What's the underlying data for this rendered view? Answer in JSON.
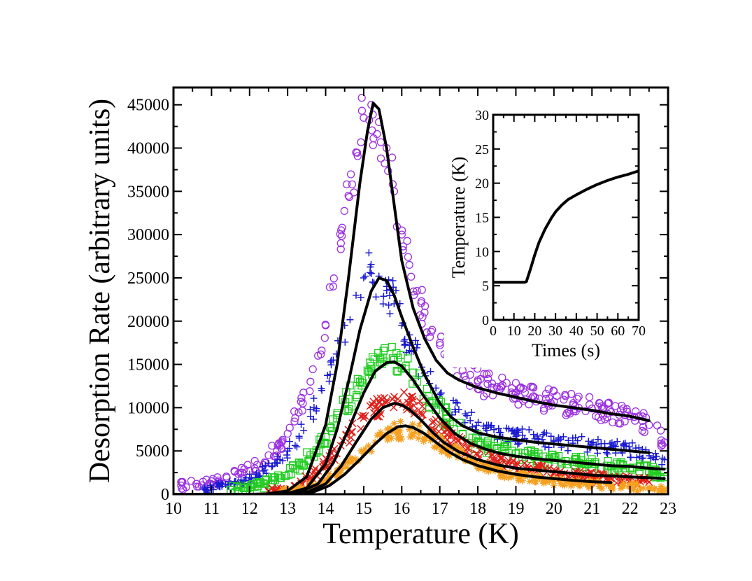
{
  "chart_data": [
    {
      "type": "scatter",
      "title": "",
      "xlabel": "Temperature (K)",
      "ylabel": "Desorption Rate (arbitrary units)",
      "xlim": [
        10,
        23
      ],
      "ylim": [
        0,
        47000
      ],
      "x_ticks": [
        "10",
        "11",
        "12",
        "13",
        "14",
        "15",
        "16",
        "17",
        "18",
        "19",
        "20",
        "21",
        "22",
        "23"
      ],
      "y_ticks": [
        "0",
        "5000",
        "10000",
        "15000",
        "20000",
        "25000",
        "30000",
        "35000",
        "40000",
        "45000"
      ],
      "grid": false,
      "legend": "none",
      "series": [
        {
          "marker": "circle-open",
          "color": "#9b30e0",
          "x": [
            10.2,
            10.6,
            11.0,
            11.4,
            11.8,
            12.2,
            12.5,
            12.8,
            13.0,
            13.2,
            13.4,
            13.6,
            13.8,
            14.0,
            14.2,
            14.4,
            14.6,
            14.8,
            15.0,
            15.2,
            15.4,
            15.6,
            15.8,
            16.0,
            16.2,
            16.4,
            16.6,
            16.8,
            17.0,
            17.2,
            17.4,
            17.6,
            17.8,
            18.0,
            18.5,
            19.0,
            19.5,
            20.0,
            20.5,
            21.0,
            21.5,
            22.0,
            22.5,
            22.9
          ],
          "y": [
            1000,
            1200,
            1500,
            1900,
            2500,
            3400,
            4500,
            5600,
            7000,
            8800,
            10500,
            13000,
            16000,
            19500,
            24000,
            29000,
            34500,
            39500,
            43500,
            45000,
            43000,
            40000,
            35000,
            30000,
            26500,
            23500,
            21000,
            19000,
            17500,
            16000,
            15000,
            14300,
            13800,
            13000,
            12400,
            11700,
            11200,
            10700,
            10300,
            9900,
            9500,
            9000,
            8000,
            6000
          ]
        },
        {
          "marker": "plus",
          "color": "#1a1ad0",
          "x": [
            10.8,
            11.2,
            11.6,
            12.0,
            12.4,
            12.8,
            13.0,
            13.3,
            13.6,
            13.9,
            14.2,
            14.5,
            14.8,
            15.0,
            15.2,
            15.4,
            15.6,
            15.8,
            16.0,
            16.3,
            16.6,
            17.0,
            17.4,
            17.8,
            18.2,
            18.6,
            19.0,
            19.5,
            20.0,
            20.5,
            21.0,
            21.5,
            22.0,
            22.5,
            22.9
          ],
          "y": [
            600,
            900,
            1300,
            1900,
            2800,
            4000,
            5000,
            6700,
            9000,
            12000,
            15500,
            19500,
            23000,
            25000,
            25500,
            25200,
            24000,
            22000,
            19500,
            16500,
            14000,
            11500,
            9800,
            8500,
            7600,
            7100,
            6700,
            6400,
            6100,
            5900,
            5700,
            5400,
            5100,
            4800,
            4000
          ]
        },
        {
          "marker": "square-open",
          "color": "#22cc22",
          "x": [
            11.5,
            12.0,
            12.4,
            12.8,
            13.2,
            13.6,
            14.0,
            14.3,
            14.6,
            14.9,
            15.2,
            15.5,
            15.8,
            16.1,
            16.4,
            16.8,
            17.2,
            17.6,
            18.0,
            18.5,
            19.0,
            19.5,
            20.0,
            20.5,
            21.0,
            21.5,
            22.0,
            22.5,
            22.9
          ],
          "y": [
            500,
            800,
            1200,
            1900,
            2900,
            4500,
            6600,
            8800,
            11000,
            13000,
            14800,
            15800,
            15500,
            14500,
            13000,
            10800,
            8800,
            7000,
            6000,
            5300,
            4700,
            4300,
            4000,
            3700,
            3500,
            3200,
            3000,
            2700,
            2000
          ]
        },
        {
          "marker": "x",
          "color": "#e0201a",
          "x": [
            12.5,
            12.9,
            13.2,
            13.5,
            13.8,
            14.1,
            14.4,
            14.7,
            15.0,
            15.3,
            15.6,
            15.9,
            16.2,
            16.5,
            16.8,
            17.2,
            17.6,
            18.0,
            18.5,
            19.0,
            19.5,
            20.0,
            20.5,
            21.0,
            21.5,
            22.0,
            22.5
          ],
          "y": [
            300,
            600,
            1000,
            1700,
            2700,
            4000,
            5600,
            7200,
            8800,
            10000,
            10800,
            11000,
            10500,
            9500,
            8300,
            6800,
            5500,
            4600,
            3800,
            3200,
            2800,
            2500,
            2200,
            2000,
            1800,
            1600,
            1400
          ]
        },
        {
          "marker": "star",
          "color": "#f5a020",
          "x": [
            12.8,
            13.2,
            13.5,
            13.8,
            14.1,
            14.4,
            14.7,
            15.0,
            15.3,
            15.6,
            15.9,
            16.2,
            16.5,
            16.8,
            17.1,
            17.5,
            17.9,
            18.3,
            18.7,
            19.1,
            19.5,
            20.0,
            20.5,
            21.0,
            21.5,
            22.0,
            22.5,
            22.9
          ],
          "y": [
            200,
            400,
            700,
            1200,
            1900,
            2800,
            3800,
            4900,
            6000,
            6800,
            7300,
            7500,
            7200,
            6400,
            5500,
            4500,
            3700,
            3000,
            2500,
            2100,
            1800,
            1500,
            1300,
            1100,
            950,
            850,
            750,
            600
          ]
        }
      ],
      "fit_curves": [
        {
          "color": "#000000",
          "x": [
            10,
            12.0,
            12.5,
            13.0,
            13.5,
            14.0,
            14.3,
            14.6,
            14.9,
            15.1,
            15.25,
            15.4,
            15.6,
            15.8,
            16.0,
            16.3,
            16.6,
            16.9,
            17.2,
            17.5,
            18.0,
            18.5,
            19.0,
            19.5,
            20.0,
            20.5,
            21.0,
            21.5,
            22.0,
            22.5
          ],
          "y": [
            0,
            0,
            50,
            400,
            2000,
            8000,
            15000,
            25000,
            36000,
            42000,
            45200,
            44500,
            40000,
            33500,
            27000,
            21500,
            18000,
            15500,
            14000,
            13200,
            12300,
            11700,
            11200,
            10700,
            10300,
            10000,
            9700,
            9300,
            9000,
            8500
          ]
        },
        {
          "color": "#000000",
          "x": [
            10,
            12.5,
            13.0,
            13.5,
            14.0,
            14.3,
            14.6,
            14.9,
            15.2,
            15.4,
            15.6,
            15.8,
            16.0,
            16.3,
            16.6,
            17.0,
            17.3,
            17.6,
            18.0,
            18.5,
            19.0,
            19.5,
            20.0,
            20.5,
            21.0,
            21.5,
            22.0,
            22.5
          ],
          "y": [
            0,
            0,
            100,
            700,
            3500,
            7500,
            13000,
            19000,
            23500,
            25000,
            24700,
            23000,
            20500,
            17000,
            13800,
            10500,
            8900,
            7900,
            7100,
            6600,
            6300,
            6000,
            5800,
            5600,
            5400,
            5200,
            5000,
            4800
          ]
        },
        {
          "color": "#000000",
          "x": [
            10,
            12.8,
            13.3,
            13.8,
            14.2,
            14.6,
            15.0,
            15.3,
            15.6,
            15.8,
            16.0,
            16.3,
            16.6,
            17.0,
            17.4,
            17.8,
            18.2,
            18.6,
            19.0,
            19.5,
            20.0,
            20.5,
            21.0,
            21.5,
            22.0,
            22.5,
            22.9
          ],
          "y": [
            0,
            0,
            200,
            1200,
            3600,
            7500,
            11700,
            14200,
            15200,
            15300,
            14800,
            13200,
            11200,
            8800,
            7000,
            5900,
            5200,
            4700,
            4400,
            4100,
            3900,
            3700,
            3500,
            3300,
            3200,
            3000,
            2900
          ]
        },
        {
          "color": "#000000",
          "x": [
            10,
            13.0,
            13.5,
            14.0,
            14.4,
            14.8,
            15.2,
            15.5,
            15.8,
            16.0,
            16.2,
            16.5,
            16.8,
            17.1,
            17.5,
            18.0,
            18.5,
            19.0,
            19.5,
            20.0,
            20.5,
            21.0,
            21.5,
            22.0,
            22.5,
            22.9
          ],
          "y": [
            0,
            0,
            200,
            1200,
            3200,
            6000,
            8700,
            10000,
            10500,
            10300,
            9800,
            8600,
            7200,
            6000,
            4900,
            4000,
            3400,
            3000,
            2800,
            2600,
            2400,
            2200,
            2100,
            2000,
            1900,
            1800
          ]
        },
        {
          "color": "#000000",
          "x": [
            10,
            13.2,
            13.7,
            14.1,
            14.5,
            14.9,
            15.3,
            15.6,
            15.9,
            16.1,
            16.3,
            16.6,
            16.9,
            17.2,
            17.6,
            18.0,
            18.5,
            19.0,
            19.5,
            20.0,
            20.5,
            21.0,
            21.5
          ],
          "y": [
            0,
            0,
            300,
            1000,
            2300,
            4000,
            5800,
            7000,
            7800,
            7900,
            7700,
            7000,
            6000,
            5000,
            4000,
            3300,
            2700,
            2300,
            2000,
            1800,
            1600,
            1450,
            1350
          ]
        }
      ]
    },
    {
      "type": "line",
      "title": "",
      "xlabel": "Times (s)",
      "ylabel": "Temperature (K)",
      "xlim": [
        0,
        70
      ],
      "ylim": [
        0,
        30
      ],
      "x_ticks": [
        "0",
        "10",
        "20",
        "30",
        "40",
        "50",
        "60",
        "70"
      ],
      "y_ticks": [
        "0",
        "5",
        "10",
        "15",
        "20",
        "25",
        "30"
      ],
      "grid": false,
      "legend": "none",
      "series": [
        {
          "color": "#000000",
          "x": [
            0,
            5,
            10,
            15,
            16,
            18,
            20,
            22,
            25,
            28,
            30,
            33,
            36,
            40,
            45,
            50,
            55,
            60,
            65,
            70
          ],
          "y": [
            5.5,
            5.5,
            5.5,
            5.5,
            5.6,
            7.5,
            9.5,
            11.3,
            13.3,
            14.9,
            15.8,
            16.8,
            17.6,
            18.3,
            19.1,
            19.8,
            20.4,
            20.9,
            21.3,
            21.8
          ]
        }
      ]
    }
  ]
}
